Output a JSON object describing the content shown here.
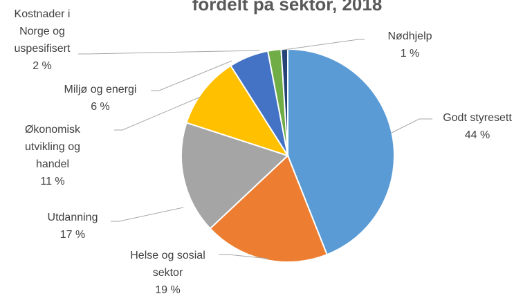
{
  "chart_data": {
    "type": "pie",
    "title": "fordelt på sektor, 2018",
    "categories": [
      "Godt styresett",
      "Helse og sosial sektor",
      "Utdanning",
      "Økonomisk utvikling og handel",
      "Miljø og energi",
      "Kostnader i Norge og uspesifisert",
      "Nødhjelp"
    ],
    "values": [
      44,
      19,
      17,
      11,
      6,
      2,
      1
    ],
    "value_labels": [
      "44 %",
      "19 %",
      "17 %",
      "11 %",
      "6 %",
      "2 %",
      "1 %"
    ],
    "colors": [
      "#5b9bd5",
      "#ed7d31",
      "#a5a5a5",
      "#ffc000",
      "#4472c4",
      "#70ad47",
      "#264478"
    ]
  }
}
